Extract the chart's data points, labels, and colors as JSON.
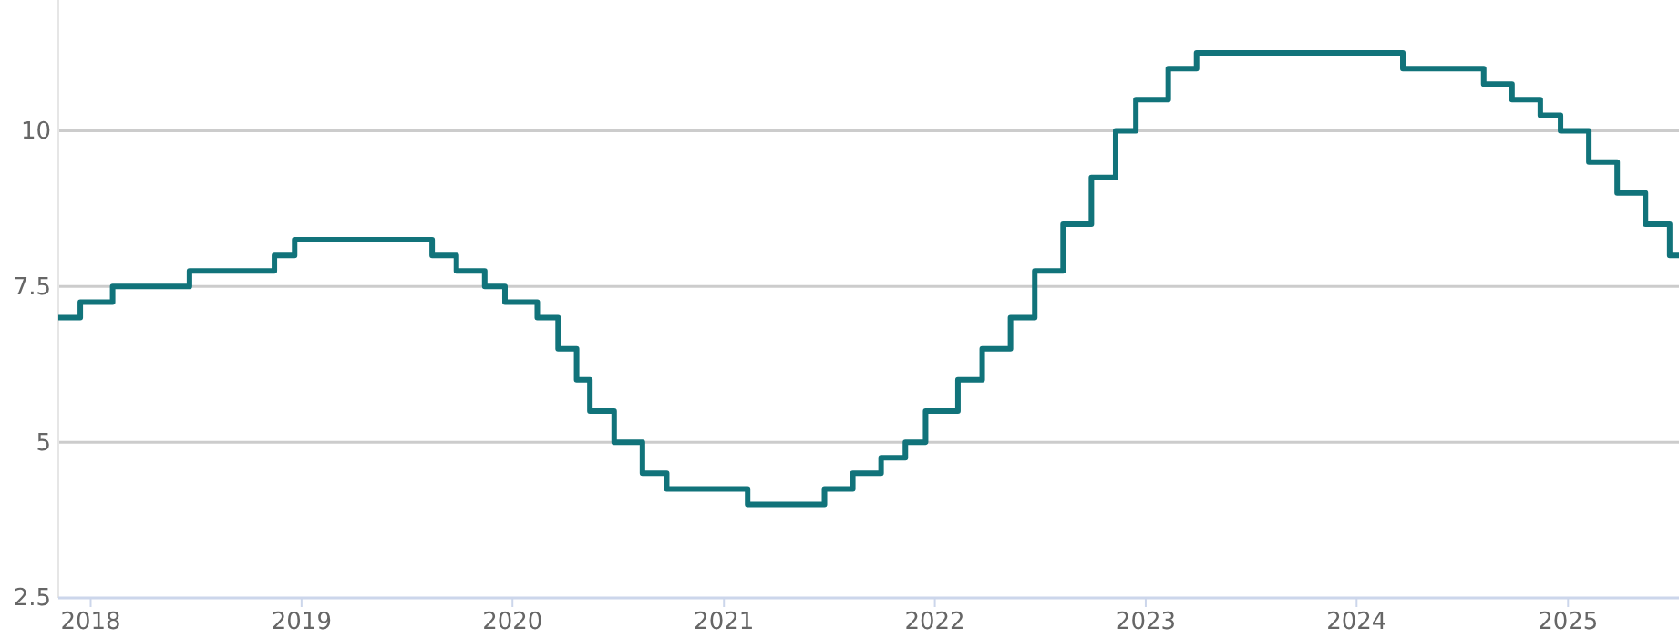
{
  "chart_data": {
    "type": "step",
    "x": [
      "2017-11-06",
      "2017-12-14",
      "2018-02-08",
      "2018-06-21",
      "2018-11-15",
      "2018-12-20",
      "2019-08-15",
      "2019-09-26",
      "2019-11-14",
      "2019-12-19",
      "2020-02-13",
      "2020-03-20",
      "2020-04-21",
      "2020-05-14",
      "2020-06-25",
      "2020-08-13",
      "2020-09-24",
      "2021-02-11",
      "2021-06-24",
      "2021-08-12",
      "2021-09-30",
      "2021-11-11",
      "2021-12-16",
      "2022-02-10",
      "2022-03-24",
      "2022-05-12",
      "2022-06-23",
      "2022-08-11",
      "2022-09-29",
      "2022-11-10",
      "2022-12-15",
      "2023-02-09",
      "2023-03-30",
      "2024-03-21",
      "2024-08-08",
      "2024-09-26",
      "2024-11-14",
      "2024-12-19",
      "2025-02-06",
      "2025-03-27",
      "2025-05-15",
      "2025-06-26",
      "2025-07-12"
    ],
    "series": [
      {
        "color": "#11737a",
        "values": [
          7.0,
          7.25,
          7.5,
          7.75,
          8.0,
          8.25,
          8.0,
          7.75,
          7.5,
          7.25,
          7.0,
          6.5,
          6.0,
          5.5,
          5.0,
          4.5,
          4.25,
          4.0,
          4.25,
          4.5,
          4.75,
          5.0,
          5.5,
          6.0,
          6.5,
          7.0,
          7.75,
          8.5,
          9.25,
          10.0,
          10.5,
          11.0,
          11.25,
          11.0,
          10.75,
          10.5,
          10.25,
          10.0,
          9.5,
          9.0,
          8.5,
          8.0,
          8.0
        ]
      }
    ],
    "xlim": [
      "2017-11-06",
      "2025-07-12"
    ],
    "xticks": [
      {
        "value": "2018-01-01",
        "label": "2018"
      },
      {
        "value": "2019-01-01",
        "label": "2019"
      },
      {
        "value": "2020-01-01",
        "label": "2020"
      },
      {
        "value": "2021-01-01",
        "label": "2021"
      },
      {
        "value": "2022-01-01",
        "label": "2022"
      },
      {
        "value": "2023-01-01",
        "label": "2023"
      },
      {
        "value": "2024-01-01",
        "label": "2024"
      },
      {
        "value": "2025-01-01",
        "label": "2025"
      }
    ],
    "ylim": [
      2.5,
      12.1
    ],
    "yticks": [
      2.5,
      5,
      {
        "value": 7.5,
        "label": "7.5"
      },
      10
    ],
    "grid": "y",
    "marker": "none",
    "line_style": "solid"
  }
}
